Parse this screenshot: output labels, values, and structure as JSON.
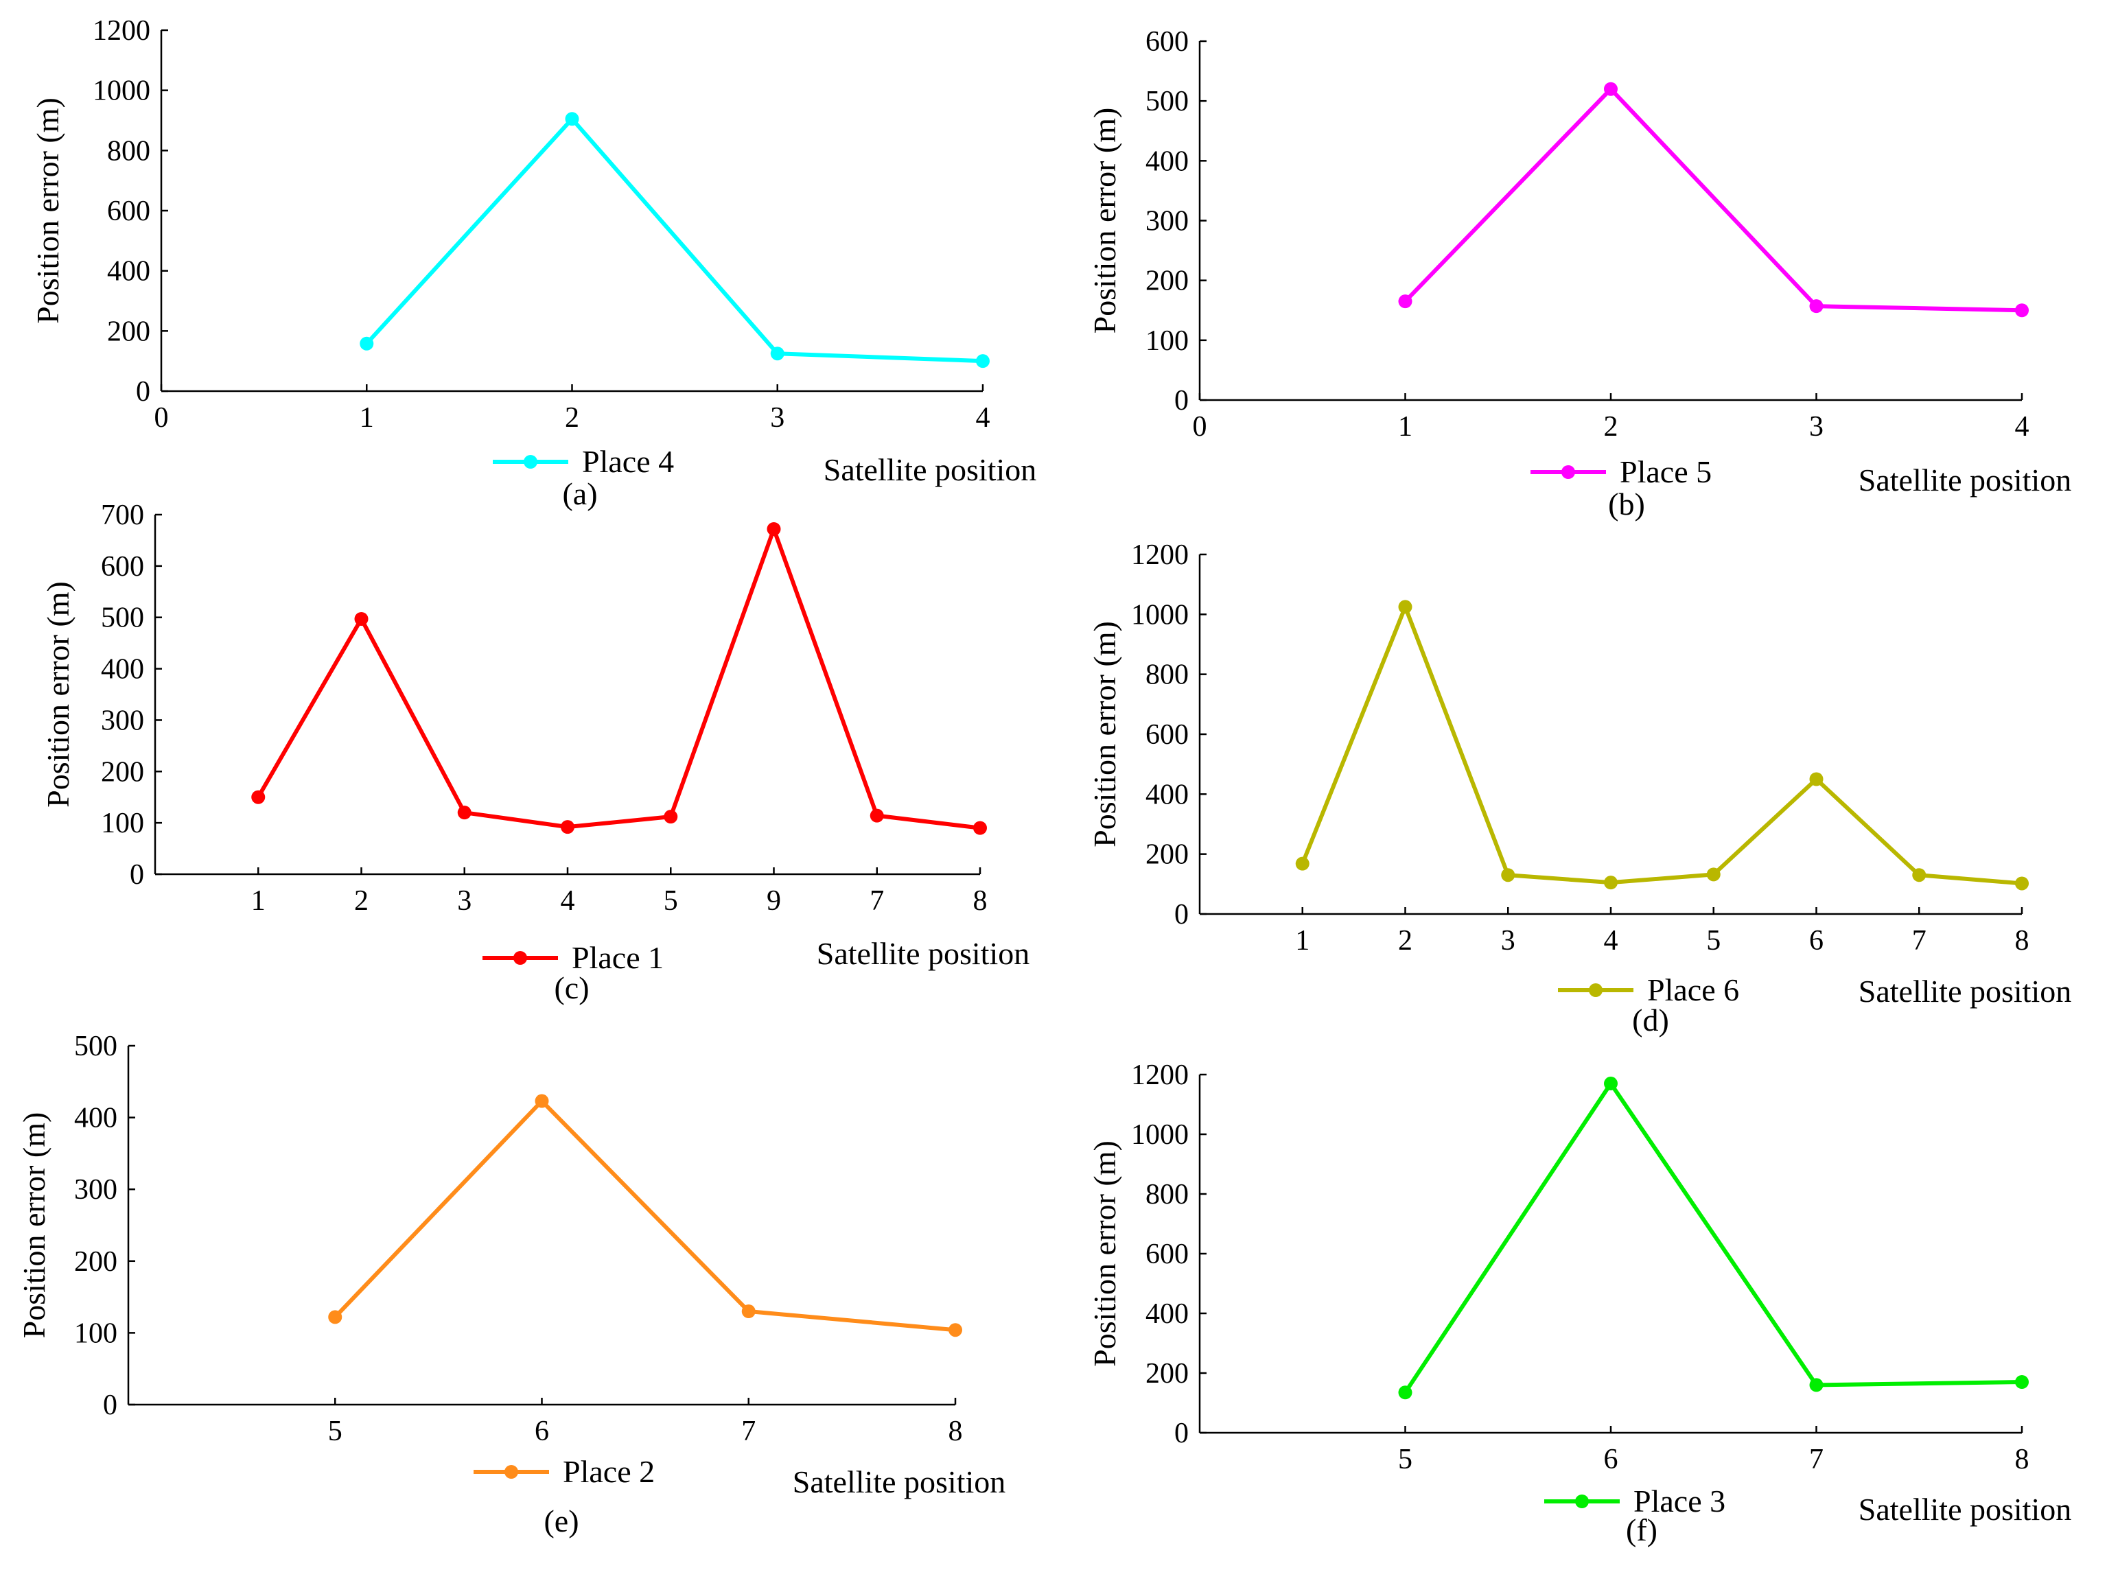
{
  "chart_data": [
    {
      "panel_label": "(a)",
      "type": "line",
      "color": "#00ffff",
      "legend": "Place 4",
      "xlabel": "Satellite position",
      "ylabel": "Position error (m)",
      "categories": [
        "1",
        "2",
        "3",
        "4"
      ],
      "category_positions": [
        1,
        2,
        3,
        4
      ],
      "values": [
        158,
        905,
        125,
        100
      ],
      "xlim": [
        0,
        4
      ],
      "x_ticks": [
        0,
        1,
        2,
        3,
        4
      ],
      "x_tick_labels": [
        "0",
        "1",
        "2",
        "3",
        "4"
      ],
      "ylim": [
        0,
        1200
      ],
      "y_ticks": [
        0,
        200,
        400,
        600,
        800,
        1000,
        1200
      ]
    },
    {
      "panel_label": "(b)",
      "type": "line",
      "color": "#ff00ff",
      "legend": "Place 5",
      "xlabel": "Satellite position",
      "ylabel": "Position error (m)",
      "categories": [
        "1",
        "2",
        "3",
        "4"
      ],
      "category_positions": [
        1,
        2,
        3,
        4
      ],
      "values": [
        165,
        520,
        157,
        150
      ],
      "xlim": [
        0,
        4
      ],
      "x_ticks": [
        0,
        1,
        2,
        3,
        4
      ],
      "x_tick_labels": [
        "0",
        "1",
        "2",
        "3",
        "4"
      ],
      "ylim": [
        0,
        600
      ],
      "y_ticks": [
        0,
        100,
        200,
        300,
        400,
        500,
        600
      ]
    },
    {
      "panel_label": "(c)",
      "type": "line",
      "color": "#ff0000",
      "legend": "Place 1",
      "xlabel": "Satellite position",
      "ylabel": "Position error (m)",
      "categories": [
        "1",
        "2",
        "3",
        "4",
        "5",
        "9",
        "7",
        "8"
      ],
      "category_positions": [
        1,
        2,
        3,
        4,
        5,
        6,
        7,
        8
      ],
      "values": [
        150,
        497,
        120,
        92,
        112,
        672,
        114,
        90
      ],
      "xlim": [
        0,
        8
      ],
      "x_ticks": [
        1,
        2,
        3,
        4,
        5,
        6,
        7,
        8
      ],
      "x_tick_labels": [
        "1",
        "2",
        "3",
        "4",
        "5",
        "9",
        "7",
        "8"
      ],
      "ylim": [
        0,
        700
      ],
      "y_ticks": [
        0,
        100,
        200,
        300,
        400,
        500,
        600,
        700
      ]
    },
    {
      "panel_label": "(d)",
      "type": "line",
      "color": "#b9b700",
      "legend": "Place 6",
      "xlabel": "Satellite position",
      "ylabel": "Position error (m)",
      "categories": [
        "1",
        "2",
        "3",
        "4",
        "5",
        "6",
        "7",
        "8"
      ],
      "category_positions": [
        1,
        2,
        3,
        4,
        5,
        6,
        7,
        8
      ],
      "values": [
        168,
        1025,
        130,
        105,
        132,
        450,
        130,
        102
      ],
      "xlim": [
        0,
        8
      ],
      "x_ticks": [
        1,
        2,
        3,
        4,
        5,
        6,
        7,
        8
      ],
      "x_tick_labels": [
        "1",
        "2",
        "3",
        "4",
        "5",
        "6",
        "7",
        "8"
      ],
      "ylim": [
        0,
        1200
      ],
      "y_ticks": [
        0,
        200,
        400,
        600,
        800,
        1000,
        1200
      ]
    },
    {
      "panel_label": "(e)",
      "type": "line",
      "color": "#ff8c1a",
      "legend": "Place 2",
      "xlabel": "Satellite position",
      "ylabel": "Position error (m)",
      "categories": [
        "5",
        "6",
        "7",
        "8"
      ],
      "category_positions": [
        5,
        6,
        7,
        8
      ],
      "values": [
        122,
        423,
        130,
        104
      ],
      "xlim": [
        4,
        8
      ],
      "x_ticks": [
        5,
        6,
        7,
        8
      ],
      "x_tick_labels": [
        "5",
        "6",
        "7",
        "8"
      ],
      "ylim": [
        0,
        500
      ],
      "y_ticks": [
        0,
        100,
        200,
        300,
        400,
        500
      ]
    },
    {
      "panel_label": "(f)",
      "type": "line",
      "color": "#00ee00",
      "legend": "Place 3",
      "xlabel": "Satellite position",
      "ylabel": "Position error (m)",
      "categories": [
        "5",
        "6",
        "7",
        "8"
      ],
      "category_positions": [
        5,
        6,
        7,
        8
      ],
      "values": [
        135,
        1170,
        160,
        170
      ],
      "xlim": [
        4,
        8
      ],
      "x_ticks": [
        5,
        6,
        7,
        8
      ],
      "x_tick_labels": [
        "5",
        "6",
        "7",
        "8"
      ],
      "ylim": [
        0,
        1200
      ],
      "y_ticks": [
        0,
        200,
        400,
        600,
        800,
        1000,
        1200
      ]
    }
  ]
}
